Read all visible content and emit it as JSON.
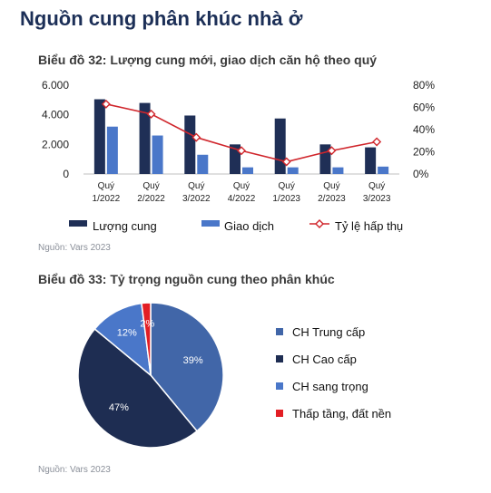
{
  "page_title": "Nguồn cung phân khúc nhà ở",
  "chart_data": [
    {
      "type": "bar",
      "title": "Biểu đồ 32: Lượng cung mới, giao dịch căn hộ theo quý",
      "categories": [
        [
          "Quý",
          "1/2022"
        ],
        [
          "Quý",
          "2/2022"
        ],
        [
          "Quý",
          "3/2022"
        ],
        [
          "Quý",
          "4/2022"
        ],
        [
          "Quý",
          "1/2023"
        ],
        [
          "Quý",
          "2/2023"
        ],
        [
          "Quý",
          "3/2023"
        ]
      ],
      "y_ticks": [
        "6.000",
        "4.000",
        "2.000",
        "0"
      ],
      "y2_ticks": [
        "80%",
        "60%",
        "40%",
        "20%",
        "0%"
      ],
      "ylim": [
        0,
        6000
      ],
      "y2lim": [
        0,
        80
      ],
      "series": [
        {
          "name": "Lượng cung",
          "kind": "bar",
          "color": "#1f2f56",
          "values": [
            5050,
            4800,
            3950,
            2000,
            3750,
            2000,
            1800
          ]
        },
        {
          "name": "Giao dịch",
          "kind": "bar",
          "color": "#4a77c9",
          "values": [
            3200,
            2600,
            1300,
            450,
            450,
            450,
            500
          ]
        },
        {
          "name": "Tỷ lệ hấp thụ",
          "kind": "line",
          "axis": "right",
          "color": "#d0262c",
          "values": [
            63,
            54,
            33,
            21,
            11,
            21,
            29
          ]
        }
      ],
      "legend_position": "bottom",
      "source": "Nguồn: Vars 2023"
    },
    {
      "type": "pie",
      "title": "Biểu đồ 33: Tỷ trọng nguồn cung theo phân khúc",
      "labels": [
        "CH Trung cấp",
        "CH Cao cấp",
        "CH sang trọng",
        "Thấp tầng, đất nền"
      ],
      "values": [
        39,
        47,
        12,
        2
      ],
      "value_labels": [
        "39%",
        "47%",
        "12%",
        "2%"
      ],
      "colors": [
        "#4166a8",
        "#1e2d52",
        "#4a77c9",
        "#e31e24"
      ],
      "legend_position": "right",
      "source": "Nguồn: Vars 2023"
    }
  ]
}
